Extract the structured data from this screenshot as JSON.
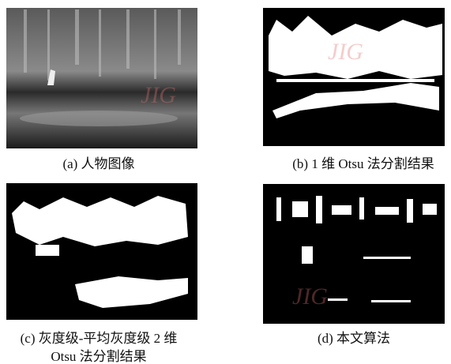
{
  "figure": {
    "panels": [
      {
        "caption": [
          "(a) 人物图像"
        ]
      },
      {
        "caption": [
          "(b) 1 维 Otsu 法分割结果"
        ]
      },
      {
        "caption": [
          "(c) 灰度级-平均灰度级 2 维",
          "Otsu 法分割结果"
        ]
      },
      {
        "caption": [
          "(d) 本文算法"
        ]
      }
    ],
    "watermark": "JIG"
  }
}
